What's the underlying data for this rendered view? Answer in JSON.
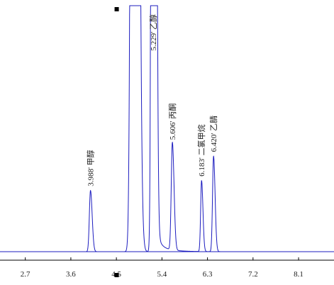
{
  "colors": {
    "trace": "#1c1cbf",
    "axis": "#000000",
    "background": "#ffffff"
  },
  "chart_data": {
    "type": "line",
    "title": "",
    "xlabel": "",
    "ylabel": "",
    "xlim": [
      2.2,
      8.8
    ],
    "ylim": [
      0,
      100
    ],
    "grid": false,
    "x_ticks": [
      "2.7",
      "3.6",
      "4.5",
      "5.4",
      "6.3",
      "7.2",
      "8.1"
    ],
    "x_tick_values": [
      2.7,
      3.6,
      4.5,
      5.4,
      6.3,
      7.2,
      8.1
    ],
    "peaks": [
      {
        "rt": 3.988,
        "height": 25,
        "width": 0.022,
        "label": "3.988' 甲醇"
      },
      {
        "rt": 4.85,
        "height": 1200,
        "width": 0.04,
        "label": ""
      },
      {
        "rt": 5.229,
        "height": 1200,
        "width": 0.025,
        "label": "5.229' 乙醇"
      },
      {
        "rt": 5.606,
        "height": 44,
        "width": 0.022,
        "label": "5.606' 丙酮"
      },
      {
        "rt": 6.183,
        "height": 29,
        "width": 0.018,
        "label": "6.183' 二氯甲烷"
      },
      {
        "rt": 6.42,
        "height": 39,
        "width": 0.02,
        "label": "6.420' 乙腈"
      }
    ],
    "solvent_markers": [
      {
        "x": 4.45,
        "position": "top"
      },
      {
        "x": 4.45,
        "position": "bottom"
      }
    ]
  }
}
